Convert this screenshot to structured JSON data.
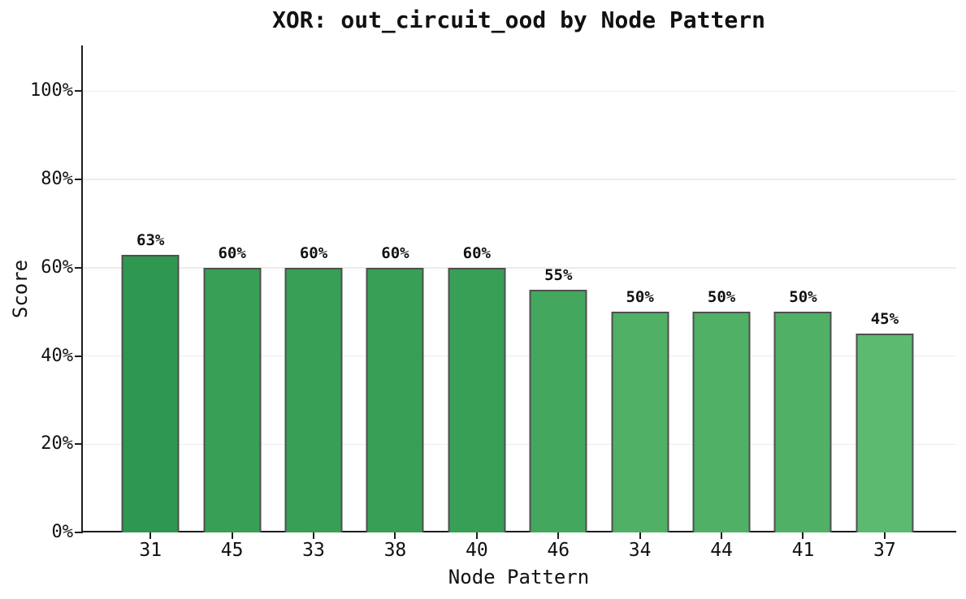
{
  "chart_data": {
    "type": "bar",
    "title": "XOR: out_circuit_ood by Node Pattern",
    "xlabel": "Node Pattern",
    "ylabel": "Score",
    "categories": [
      "31",
      "45",
      "33",
      "38",
      "40",
      "46",
      "34",
      "44",
      "41",
      "37"
    ],
    "values": [
      63,
      60,
      60,
      60,
      60,
      55,
      50,
      50,
      50,
      45
    ],
    "bar_labels": [
      "63%",
      "60%",
      "60%",
      "60%",
      "60%",
      "55%",
      "50%",
      "50%",
      "50%",
      "45%"
    ],
    "bar_colors": [
      "#2e9750",
      "#389f56",
      "#389f56",
      "#389f56",
      "#389f56",
      "#43a75e",
      "#4fb066",
      "#4fb066",
      "#4fb066",
      "#5cba70"
    ],
    "bar_edge_color": "#4f4f4f",
    "ylim": [
      0,
      110
    ],
    "yticks": [
      {
        "value": 0,
        "label": "0%"
      },
      {
        "value": 20,
        "label": "20%"
      },
      {
        "value": 40,
        "label": "40%"
      },
      {
        "value": 60,
        "label": "60%"
      },
      {
        "value": 80,
        "label": "80%"
      },
      {
        "value": 100,
        "label": "100%"
      }
    ],
    "grid": true,
    "grid_color": "#ececec",
    "axis_color": "#1c1c1c",
    "text_color": "#111111",
    "background": "#ffffff",
    "legend": "none"
  }
}
